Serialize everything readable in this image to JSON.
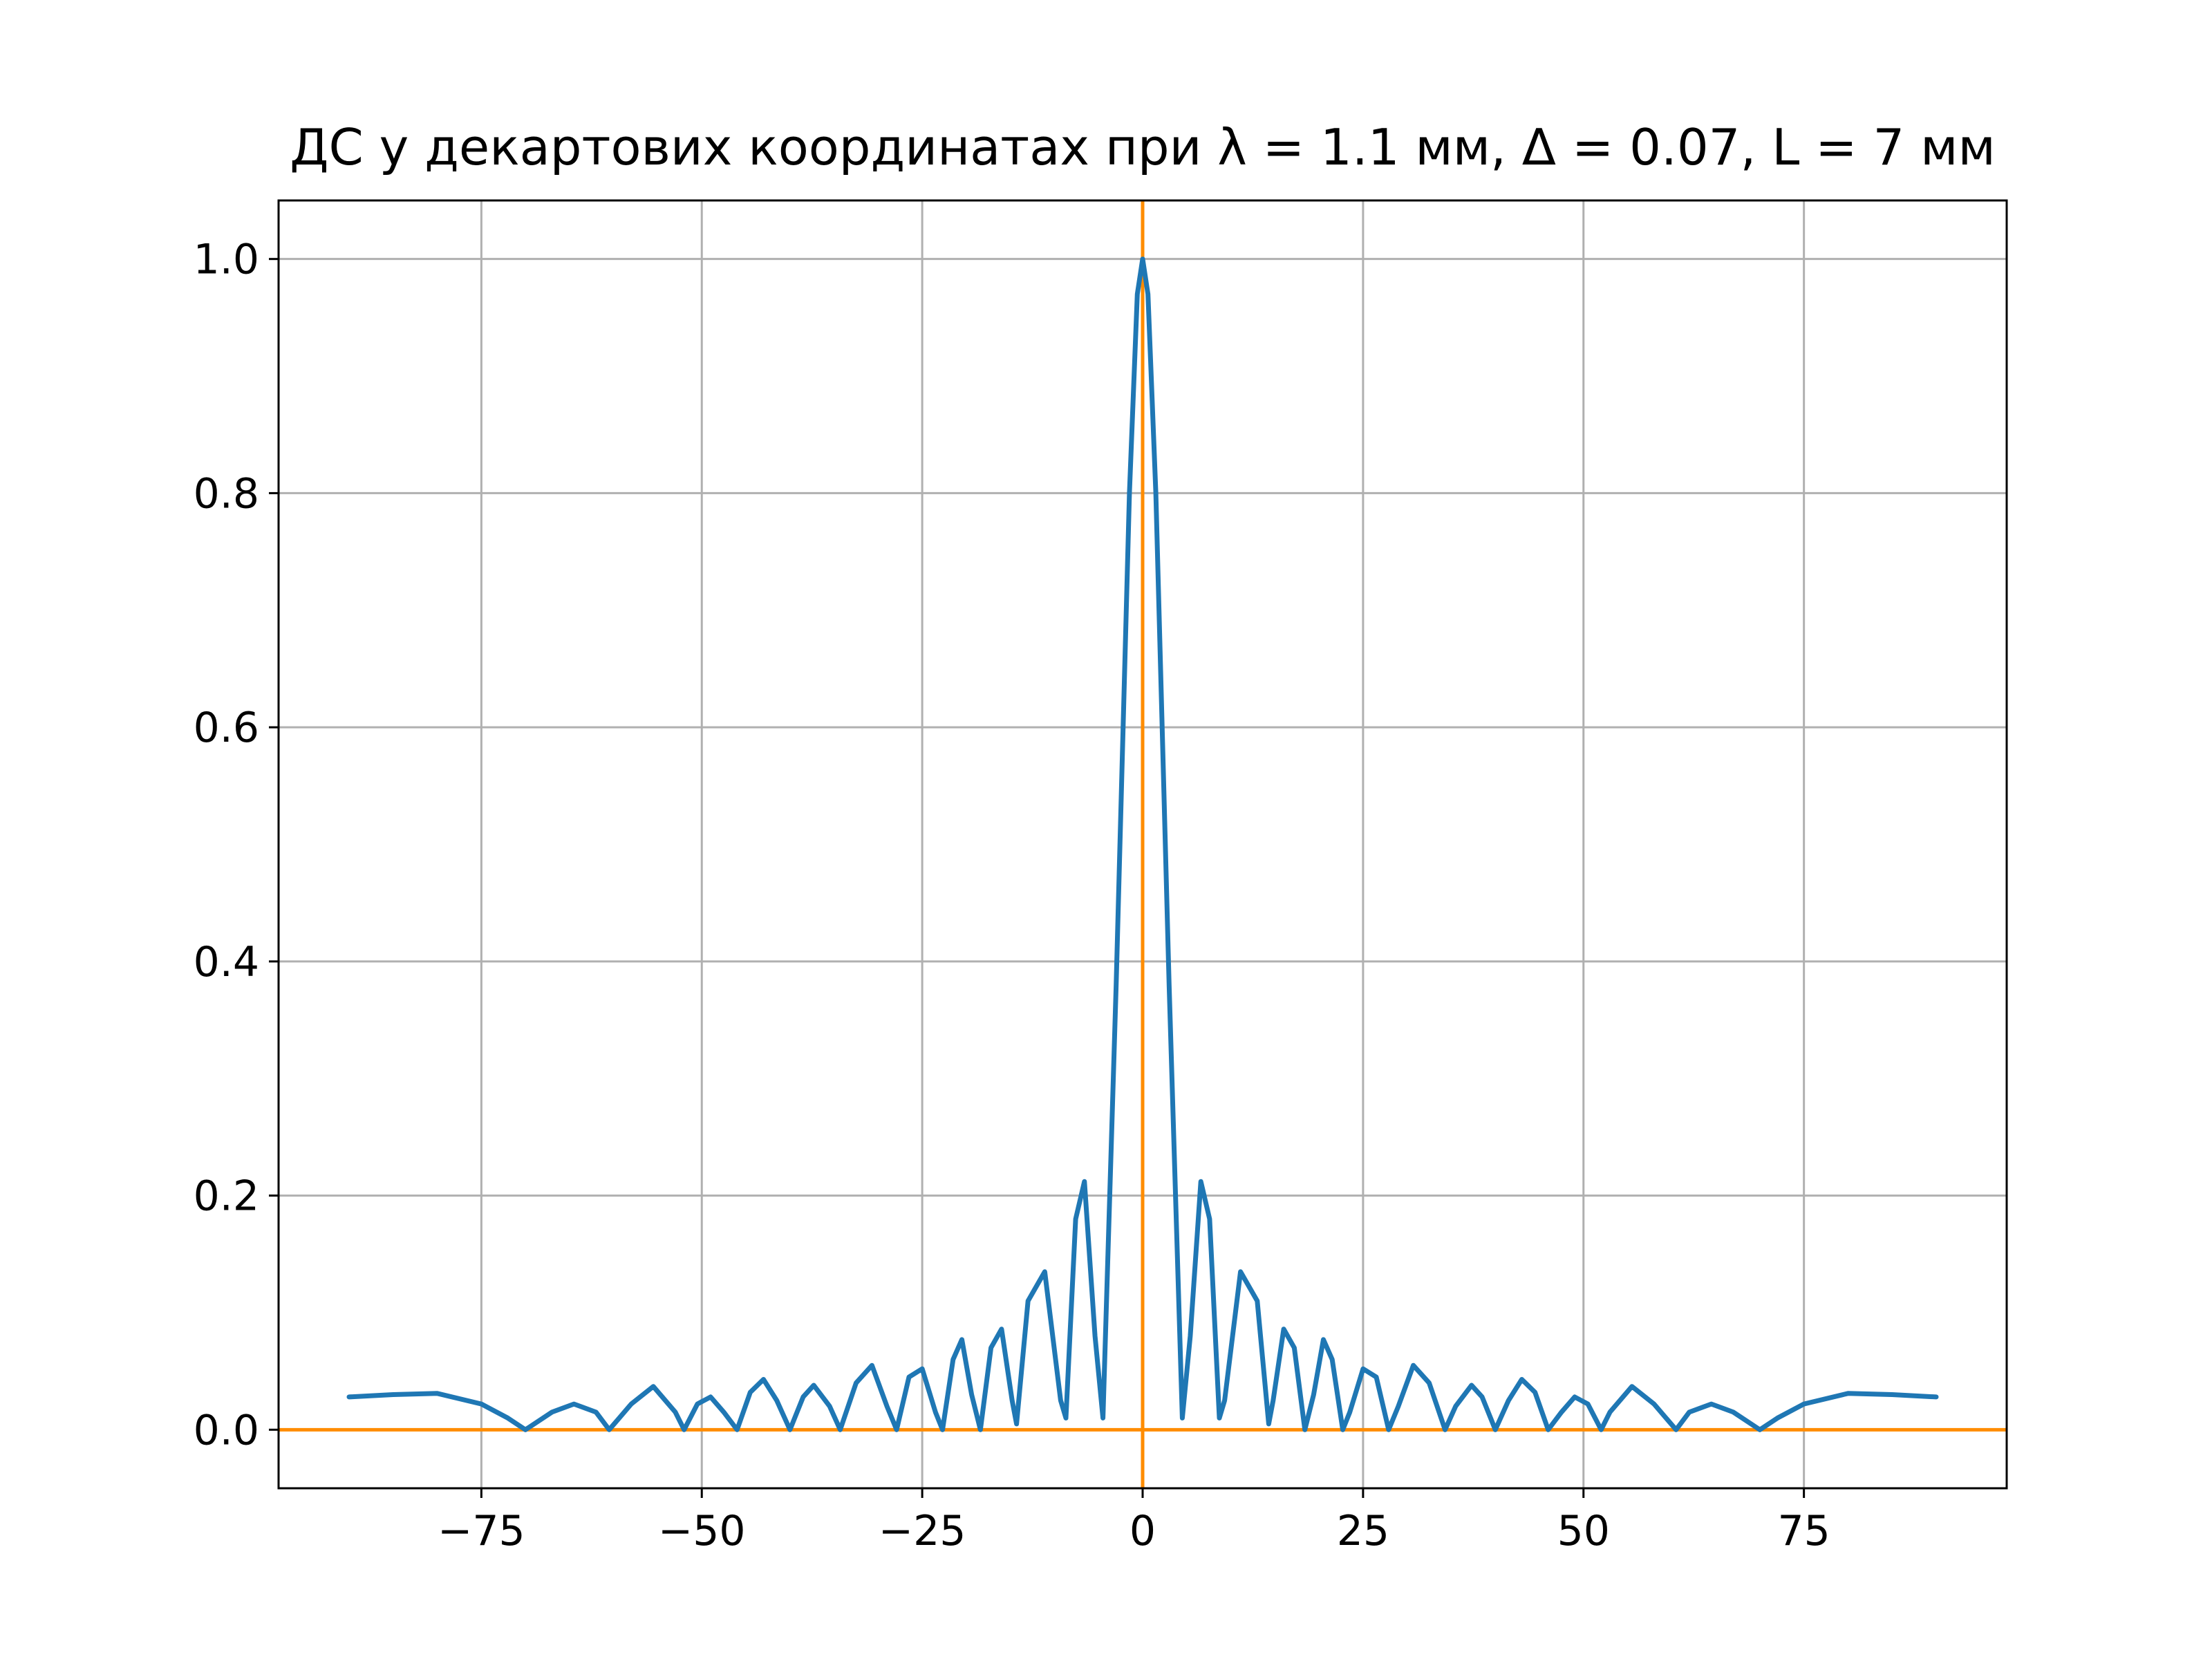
{
  "chart_data": {
    "type": "line",
    "title": "ДС у декартових координатах при λ = 1.1 мм, Δ = 0.07, L = 7 мм",
    "xlabel": "",
    "ylabel": "",
    "xlim": [
      -98,
      98
    ],
    "ylim": [
      -0.05,
      1.05
    ],
    "xticks": [
      -75,
      -50,
      -25,
      0,
      25,
      50,
      75
    ],
    "xtick_labels": [
      "−75",
      "−50",
      "−25",
      "0",
      "25",
      "50",
      "75"
    ],
    "yticks": [
      0.0,
      0.2,
      0.4,
      0.6,
      0.8,
      1.0
    ],
    "ytick_labels": [
      "0.0",
      "0.2",
      "0.4",
      "0.6",
      "0.8",
      "1.0"
    ],
    "grid": true,
    "reference_lines": {
      "vertical_x": 0,
      "horizontal_y": 0,
      "color": "#ff8c00"
    },
    "series": [
      {
        "color": "#1f77b4",
        "x": [
          -90,
          -85,
          -80,
          -75,
          -72,
          -70,
          -67,
          -64.5,
          -62,
          -60.5,
          -58,
          -55.5,
          -53,
          -52,
          -50.5,
          -49,
          -47.5,
          -46,
          -44.5,
          -43,
          -41.5,
          -40,
          -38.5,
          -37.3,
          -35.5,
          -34.3,
          -32.5,
          -30.7,
          -29,
          -27.9,
          -26.5,
          -25,
          -23.5,
          -22.7,
          -21.5,
          -20.5,
          -19.4,
          -18.4,
          -17.2,
          -16,
          -14.8,
          -14.3,
          -13,
          -11.1,
          -9.3,
          -8.7,
          -7.6,
          -6.6,
          -5.4,
          -4.5,
          -3,
          -1.5,
          -0.6,
          0,
          0.6,
          1.5,
          3,
          4.5,
          5.4,
          6.6,
          7.6,
          8.7,
          9.3,
          11.1,
          13,
          14.3,
          14.8,
          16,
          17.2,
          18.4,
          19.4,
          20.5,
          21.5,
          22.7,
          23.5,
          25,
          26.5,
          27.9,
          29,
          30.7,
          32.5,
          34.3,
          35.5,
          37.3,
          38.5,
          40,
          41.5,
          43,
          44.5,
          46,
          47.5,
          49,
          50.5,
          52,
          53,
          55.5,
          58,
          60.5,
          62,
          64.5,
          67,
          70,
          72,
          75,
          80,
          85,
          90
        ],
        "y": [
          0.028,
          0.03,
          0.031,
          0.022,
          0.01,
          0.0,
          0.015,
          0.022,
          0.015,
          0.0,
          0.022,
          0.037,
          0.015,
          0.0,
          0.022,
          0.028,
          0.015,
          0.0,
          0.032,
          0.043,
          0.025,
          0.0,
          0.028,
          0.038,
          0.02,
          0.0,
          0.04,
          0.055,
          0.02,
          0.0,
          0.045,
          0.052,
          0.015,
          0.0,
          0.06,
          0.077,
          0.03,
          0.0,
          0.07,
          0.086,
          0.025,
          0.005,
          0.11,
          0.135,
          0.025,
          0.01,
          0.18,
          0.212,
          0.08,
          0.01,
          0.38,
          0.8,
          0.97,
          1.0,
          0.97,
          0.8,
          0.38,
          0.01,
          0.08,
          0.212,
          0.18,
          0.01,
          0.025,
          0.135,
          0.11,
          0.005,
          0.025,
          0.086,
          0.07,
          0.0,
          0.03,
          0.077,
          0.06,
          0.0,
          0.015,
          0.052,
          0.045,
          0.0,
          0.02,
          0.055,
          0.04,
          0.0,
          0.02,
          0.038,
          0.028,
          0.0,
          0.025,
          0.043,
          0.032,
          0.0,
          0.015,
          0.028,
          0.022,
          0.0,
          0.015,
          0.037,
          0.022,
          0.0,
          0.015,
          0.022,
          0.015,
          0.0,
          0.01,
          0.022,
          0.031,
          0.03,
          0.028
        ]
      }
    ]
  }
}
